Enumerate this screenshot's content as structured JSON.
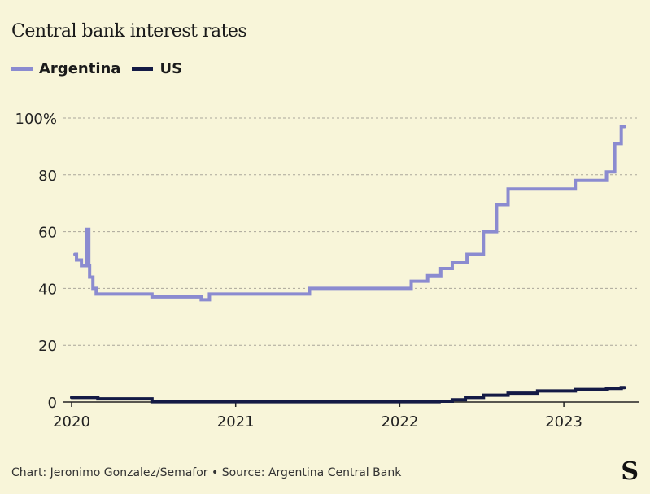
{
  "chart_data": {
    "type": "line",
    "title": "Central bank interest rates",
    "xlabel": "",
    "ylabel": "",
    "xlim": [
      2020,
      2023.45
    ],
    "ylim": [
      0,
      100
    ],
    "x_ticks": [
      {
        "value": 2020,
        "label": "2020"
      },
      {
        "value": 2021,
        "label": "2021"
      },
      {
        "value": 2022,
        "label": "2022"
      },
      {
        "value": 2023,
        "label": "2023"
      }
    ],
    "y_ticks": [
      {
        "value": 0,
        "label": "0"
      },
      {
        "value": 20,
        "label": "20"
      },
      {
        "value": 40,
        "label": "40"
      },
      {
        "value": 60,
        "label": "60"
      },
      {
        "value": 80,
        "label": "80"
      },
      {
        "value": 100,
        "label": "100%"
      }
    ],
    "grid": true,
    "legend_position": "top-left",
    "series": [
      {
        "name": "Argentina",
        "color": "#8b8bd0",
        "step": true,
        "points": [
          [
            2020.02,
            52
          ],
          [
            2020.03,
            50
          ],
          [
            2020.06,
            48
          ],
          [
            2020.09,
            60.8
          ],
          [
            2020.105,
            48
          ],
          [
            2020.11,
            44
          ],
          [
            2020.13,
            40
          ],
          [
            2020.15,
            38
          ],
          [
            2020.49,
            37
          ],
          [
            2020.79,
            36
          ],
          [
            2020.84,
            38
          ],
          [
            2021.45,
            40
          ],
          [
            2022.07,
            42.5
          ],
          [
            2022.17,
            44.5
          ],
          [
            2022.25,
            47
          ],
          [
            2022.32,
            49
          ],
          [
            2022.41,
            52
          ],
          [
            2022.51,
            60
          ],
          [
            2022.59,
            69.5
          ],
          [
            2022.66,
            75
          ],
          [
            2023.07,
            78
          ],
          [
            2023.26,
            81
          ],
          [
            2023.31,
            91
          ],
          [
            2023.35,
            97
          ],
          [
            2023.37,
            97
          ]
        ]
      },
      {
        "name": "US",
        "color": "#141a45",
        "step": true,
        "points": [
          [
            2020.0,
            1.6
          ],
          [
            2020.16,
            1.1
          ],
          [
            2020.49,
            0.1
          ],
          [
            2022.24,
            0.3
          ],
          [
            2022.32,
            0.8
          ],
          [
            2022.4,
            1.6
          ],
          [
            2022.51,
            2.4
          ],
          [
            2022.66,
            3.1
          ],
          [
            2022.84,
            3.9
          ],
          [
            2023.07,
            4.4
          ],
          [
            2023.26,
            4.8
          ],
          [
            2023.35,
            5.1
          ],
          [
            2023.37,
            5.1
          ]
        ]
      }
    ]
  },
  "footer": {
    "credit": "Chart: Jeronimo Gonzalez/Semafor • Source: Argentina Central Bank"
  },
  "logo_text": "S"
}
